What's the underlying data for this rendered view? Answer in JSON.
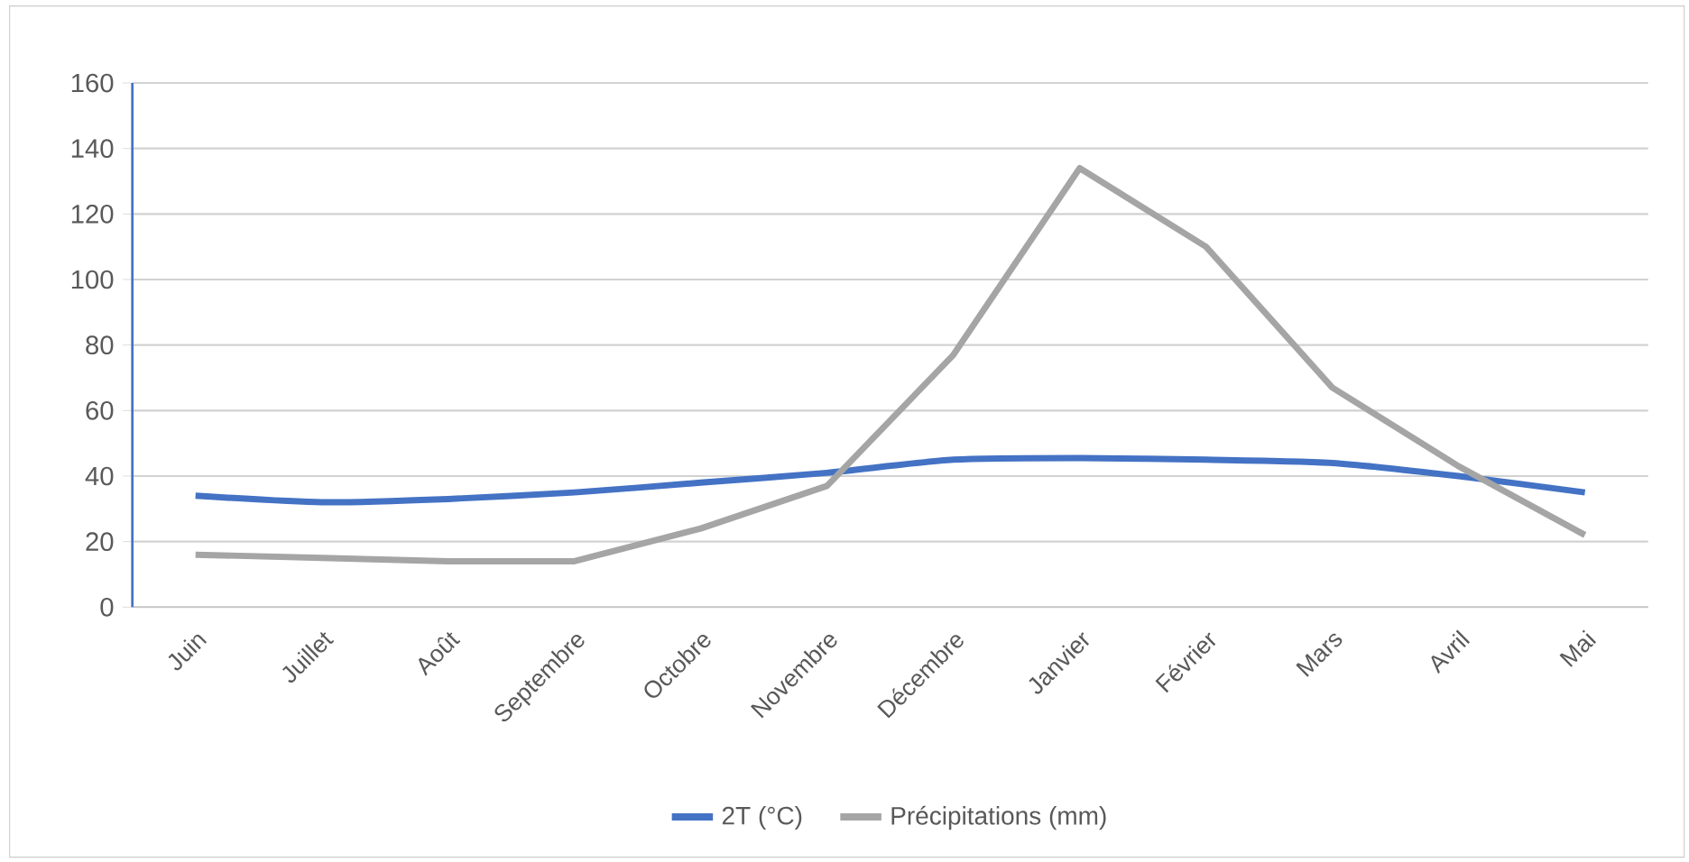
{
  "chart_data": {
    "type": "line",
    "categories": [
      "Juin",
      "Juillet",
      "Août",
      "Septembre",
      "Octobre",
      "Novembre",
      "Décembre",
      "Janvier",
      "Février",
      "Mars",
      "Avril",
      "Mai"
    ],
    "series": [
      {
        "name": "2T (°C)",
        "color": "#4472c4",
        "values": [
          34,
          32,
          33,
          35,
          38,
          41,
          45,
          45.5,
          45,
          44,
          40,
          35
        ]
      },
      {
        "name": "Précipitations (mm)",
        "color": "#a5a5a5",
        "values": [
          16,
          15,
          14,
          14,
          24,
          37,
          77,
          134,
          110,
          67,
          43,
          22
        ]
      }
    ],
    "ylim": [
      0,
      160
    ],
    "yticks": [
      0,
      20,
      40,
      60,
      80,
      100,
      120,
      140,
      160
    ],
    "grid": "y",
    "legend": "bottom",
    "marker": "none",
    "line_style": "solid"
  }
}
